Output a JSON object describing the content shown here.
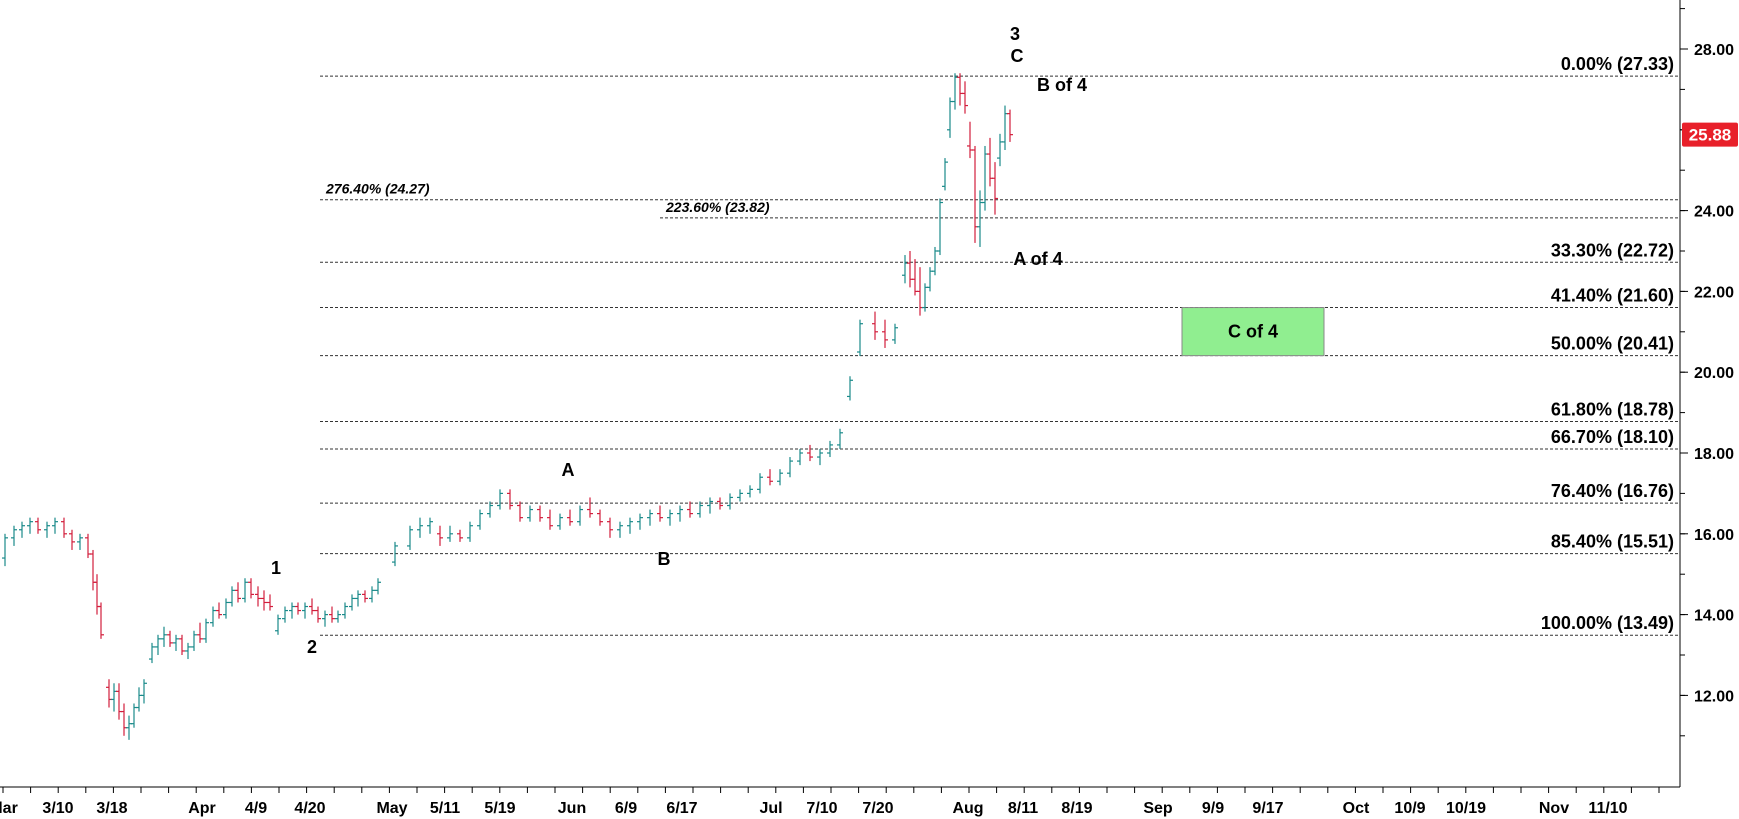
{
  "chart_data": {
    "type": "candlestick",
    "ylim": [
      10.0,
      29.5
    ],
    "y_ticks": [
      "12.00",
      "14.00",
      "16.00",
      "18.00",
      "20.00",
      "22.00",
      "24.00",
      "26.00",
      "28.00"
    ],
    "y_tick_values": [
      12,
      14,
      16,
      18,
      20,
      22,
      24,
      26,
      28
    ],
    "x_ticks": [
      "lar",
      "3/10",
      "3/18",
      "Apr",
      "4/9",
      "4/20",
      "May",
      "5/11",
      "5/19",
      "Jun",
      "6/9",
      "6/17",
      "Jul",
      "7/10",
      "7/20",
      "Aug",
      "8/11",
      "8/19",
      "Sep",
      "9/9",
      "9/17",
      "Oct",
      "10/9",
      "10/19",
      "Nov",
      "11/10"
    ],
    "last_price": "25.88",
    "last_price_value": 25.88,
    "fib_levels": [
      {
        "label": "0.00% (27.33)",
        "value": 27.33
      },
      {
        "label": "33.30% (22.72)",
        "value": 22.72
      },
      {
        "label": "41.40% (21.60)",
        "value": 21.6
      },
      {
        "label": "50.00% (20.41)",
        "value": 20.41
      },
      {
        "label": "61.80% (18.78)",
        "value": 18.78
      },
      {
        "label": "66.70% (18.10)",
        "value": 18.1
      },
      {
        "label": "76.40% (16.76)",
        "value": 16.76
      },
      {
        "label": "85.40% (15.51)",
        "value": 15.51
      },
      {
        "label": "100.00% (13.49)",
        "value": 13.49
      }
    ],
    "extension_levels": [
      {
        "label": "276.40% (24.27)",
        "value": 24.27
      },
      {
        "label": "223.60% (23.82)",
        "value": 23.82
      }
    ],
    "wave_labels": [
      "1",
      "2",
      "A",
      "B",
      "3",
      "C",
      "A of 4",
      "B of 4"
    ],
    "target_zone": {
      "label": "C of 4",
      "top": 21.6,
      "bottom": 20.41,
      "color": "#90ee90"
    },
    "colors": {
      "up": "#1a8a8a",
      "down": "#d21e3c",
      "price_tag": "#e8202a"
    },
    "series": [
      {
        "values": [
          [
            15.4,
            16.0,
            15.2,
            15.9
          ],
          [
            15.9,
            16.2,
            15.7,
            16.1
          ],
          [
            16.1,
            16.3,
            15.9,
            16.2
          ],
          [
            16.2,
            16.4,
            16.0,
            16.3
          ],
          [
            16.3,
            16.4,
            16.0,
            16.1
          ],
          [
            16.1,
            16.3,
            15.9,
            16.2
          ],
          [
            16.2,
            16.4,
            16.0,
            16.3
          ],
          [
            16.3,
            16.4,
            15.9,
            16.0
          ],
          [
            16.0,
            16.1,
            15.6,
            15.8
          ],
          [
            15.8,
            16.0,
            15.6,
            15.9
          ],
          [
            15.9,
            16.0,
            15.4,
            15.5
          ],
          [
            15.5,
            15.6,
            14.6,
            14.8
          ],
          [
            14.8,
            15.0,
            14.0,
            14.2
          ],
          [
            14.2,
            14.3,
            13.4,
            13.5
          ],
          [
            12.2,
            12.4,
            11.7,
            11.9
          ],
          [
            11.9,
            12.3,
            11.6,
            12.1
          ],
          [
            12.1,
            12.3,
            11.4,
            11.6
          ],
          [
            11.6,
            11.8,
            11.0,
            11.2
          ],
          [
            11.2,
            11.5,
            10.9,
            11.3
          ],
          [
            11.3,
            11.8,
            11.2,
            11.7
          ],
          [
            11.7,
            12.2,
            11.6,
            12.0
          ],
          [
            12.0,
            12.4,
            11.8,
            12.3
          ],
          [
            12.9,
            13.3,
            12.8,
            13.2
          ],
          [
            13.2,
            13.5,
            13.0,
            13.4
          ],
          [
            13.4,
            13.7,
            13.2,
            13.5
          ],
          [
            13.5,
            13.6,
            13.2,
            13.3
          ],
          [
            13.3,
            13.5,
            13.1,
            13.4
          ],
          [
            13.4,
            13.5,
            13.0,
            13.1
          ],
          [
            13.1,
            13.3,
            12.9,
            13.2
          ],
          [
            13.2,
            13.6,
            13.1,
            13.5
          ],
          [
            13.5,
            13.8,
            13.3,
            13.4
          ],
          [
            13.4,
            13.9,
            13.3,
            13.8
          ],
          [
            13.8,
            14.2,
            13.7,
            14.1
          ],
          [
            14.1,
            14.3,
            13.9,
            14.0
          ],
          [
            14.0,
            14.4,
            13.9,
            14.3
          ],
          [
            14.3,
            14.7,
            14.2,
            14.6
          ],
          [
            14.6,
            14.8,
            14.3,
            14.4
          ],
          [
            14.4,
            14.9,
            14.3,
            14.8
          ],
          [
            14.8,
            14.9,
            14.4,
            14.5
          ],
          [
            14.5,
            14.7,
            14.2,
            14.4
          ],
          [
            14.4,
            14.6,
            14.1,
            14.3
          ],
          [
            14.3,
            14.5,
            14.1,
            14.2
          ],
          [
            13.6,
            14.0,
            13.5,
            13.9
          ],
          [
            13.9,
            14.2,
            13.8,
            14.1
          ],
          [
            14.1,
            14.3,
            13.9,
            14.2
          ],
          [
            14.2,
            14.3,
            14.0,
            14.1
          ],
          [
            14.1,
            14.3,
            13.9,
            14.2
          ],
          [
            14.2,
            14.4,
            14.0,
            14.1
          ],
          [
            14.1,
            14.2,
            13.8,
            13.9
          ],
          [
            13.9,
            14.1,
            13.7,
            14.0
          ],
          [
            14.0,
            14.2,
            13.8,
            13.9
          ],
          [
            13.9,
            14.1,
            13.8,
            14.0
          ],
          [
            14.0,
            14.3,
            13.9,
            14.2
          ],
          [
            14.2,
            14.5,
            14.1,
            14.4
          ],
          [
            14.4,
            14.6,
            14.2,
            14.5
          ],
          [
            14.5,
            14.6,
            14.3,
            14.4
          ],
          [
            14.4,
            14.7,
            14.3,
            14.6
          ],
          [
            14.6,
            14.9,
            14.5,
            14.8
          ],
          [
            15.3,
            15.8,
            15.2,
            15.7
          ],
          [
            15.7,
            16.2,
            15.6,
            16.1
          ],
          [
            16.1,
            16.4,
            15.9,
            16.2
          ],
          [
            16.2,
            16.4,
            16.0,
            16.3
          ],
          [
            16.0,
            16.2,
            15.7,
            15.9
          ],
          [
            15.9,
            16.2,
            15.8,
            16.0
          ],
          [
            16.0,
            16.1,
            15.8,
            15.9
          ],
          [
            15.9,
            16.3,
            15.8,
            16.2
          ],
          [
            16.2,
            16.6,
            16.1,
            16.5
          ],
          [
            16.5,
            16.8,
            16.4,
            16.7
          ],
          [
            16.7,
            17.1,
            16.6,
            17.0
          ],
          [
            17.0,
            17.1,
            16.6,
            16.7
          ],
          [
            16.7,
            16.8,
            16.3,
            16.4
          ],
          [
            16.4,
            16.7,
            16.3,
            16.6
          ],
          [
            16.6,
            16.7,
            16.3,
            16.4
          ],
          [
            16.4,
            16.6,
            16.1,
            16.2
          ],
          [
            16.2,
            16.5,
            16.1,
            16.4
          ],
          [
            16.4,
            16.6,
            16.2,
            16.3
          ],
          [
            16.3,
            16.7,
            16.2,
            16.6
          ],
          [
            16.6,
            16.9,
            16.4,
            16.5
          ],
          [
            16.5,
            16.6,
            16.2,
            16.3
          ],
          [
            16.3,
            16.4,
            15.9,
            16.1
          ],
          [
            16.1,
            16.3,
            15.9,
            16.2
          ],
          [
            16.2,
            16.4,
            16.0,
            16.3
          ],
          [
            16.3,
            16.5,
            16.1,
            16.4
          ],
          [
            16.4,
            16.6,
            16.2,
            16.5
          ],
          [
            16.5,
            16.7,
            16.3,
            16.4
          ],
          [
            16.4,
            16.6,
            16.2,
            16.5
          ],
          [
            16.5,
            16.7,
            16.3,
            16.6
          ],
          [
            16.6,
            16.8,
            16.4,
            16.5
          ],
          [
            16.5,
            16.8,
            16.4,
            16.7
          ],
          [
            16.7,
            16.9,
            16.5,
            16.8
          ],
          [
            16.8,
            16.9,
            16.6,
            16.7
          ],
          [
            16.7,
            17.0,
            16.6,
            16.9
          ],
          [
            16.9,
            17.1,
            16.8,
            17.0
          ],
          [
            17.0,
            17.2,
            16.9,
            17.1
          ],
          [
            17.1,
            17.5,
            17.0,
            17.4
          ],
          [
            17.4,
            17.6,
            17.2,
            17.3
          ],
          [
            17.3,
            17.6,
            17.2,
            17.5
          ],
          [
            17.5,
            17.9,
            17.4,
            17.8
          ],
          [
            17.8,
            18.1,
            17.7,
            18.0
          ],
          [
            18.0,
            18.2,
            17.8,
            17.9
          ],
          [
            17.9,
            18.1,
            17.7,
            18.0
          ],
          [
            18.0,
            18.3,
            17.9,
            18.2
          ],
          [
            18.2,
            18.6,
            18.1,
            18.5
          ],
          [
            19.4,
            19.9,
            19.3,
            19.8
          ],
          [
            20.5,
            21.3,
            20.4,
            21.2
          ],
          [
            21.2,
            21.5,
            20.8,
            21.0
          ],
          [
            21.0,
            21.3,
            20.6,
            20.8
          ],
          [
            20.8,
            21.2,
            20.7,
            21.1
          ],
          [
            22.4,
            22.9,
            22.2,
            22.7
          ],
          [
            22.7,
            23.0,
            22.1,
            22.3
          ],
          [
            22.3,
            22.8,
            21.9,
            22.0
          ],
          [
            22.0,
            22.6,
            21.4,
            21.6
          ],
          [
            21.6,
            22.2,
            21.5,
            22.1
          ],
          [
            22.1,
            22.6,
            22.0,
            22.5
          ],
          [
            22.5,
            23.1,
            22.4,
            23.0
          ],
          [
            23.0,
            24.3,
            22.9,
            24.2
          ],
          [
            24.6,
            25.3,
            24.5,
            25.2
          ],
          [
            26.0,
            26.8,
            25.8,
            26.7
          ],
          [
            26.7,
            27.4,
            26.5,
            27.3
          ],
          [
            27.3,
            27.4,
            26.6,
            26.9
          ],
          [
            26.9,
            27.2,
            26.4,
            26.6
          ],
          [
            25.6,
            26.2,
            25.3,
            25.5
          ],
          [
            25.5,
            25.6,
            23.2,
            23.6
          ],
          [
            23.6,
            24.5,
            23.1,
            24.2
          ],
          [
            24.2,
            25.6,
            24.0,
            25.4
          ],
          [
            25.4,
            25.8,
            24.6,
            24.8
          ],
          [
            24.8,
            25.2,
            23.9,
            24.3
          ],
          [
            25.3,
            25.9,
            25.1,
            25.7
          ],
          [
            25.7,
            26.6,
            25.5,
            26.4
          ],
          [
            26.4,
            26.5,
            25.7,
            25.88
          ]
        ]
      }
    ]
  }
}
